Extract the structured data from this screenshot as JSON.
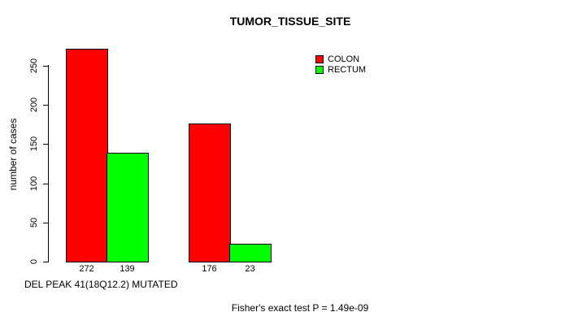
{
  "page": {
    "background": "#ffffff"
  },
  "chart_data": {
    "type": "bar",
    "title": "TUMOR_TISSUE_SITE",
    "ylabel": "number of cases",
    "xlabel": "DEL PEAK 41(18Q12.2) MUTATED",
    "footnote": "Fisher's exact test P = 1.49e-09",
    "categories": [
      "",
      ""
    ],
    "series": [
      {
        "name": "COLON",
        "color": "#ff0000",
        "values": [
          272,
          176
        ]
      },
      {
        "name": "RECTUM",
        "color": "#00ff00",
        "values": [
          139,
          23
        ]
      }
    ],
    "yticks": [
      0,
      50,
      100,
      150,
      200,
      250
    ],
    "ylim": [
      0,
      250
    ],
    "grid": false,
    "bar_border_color": "#000000",
    "legend_position": "top-right"
  }
}
